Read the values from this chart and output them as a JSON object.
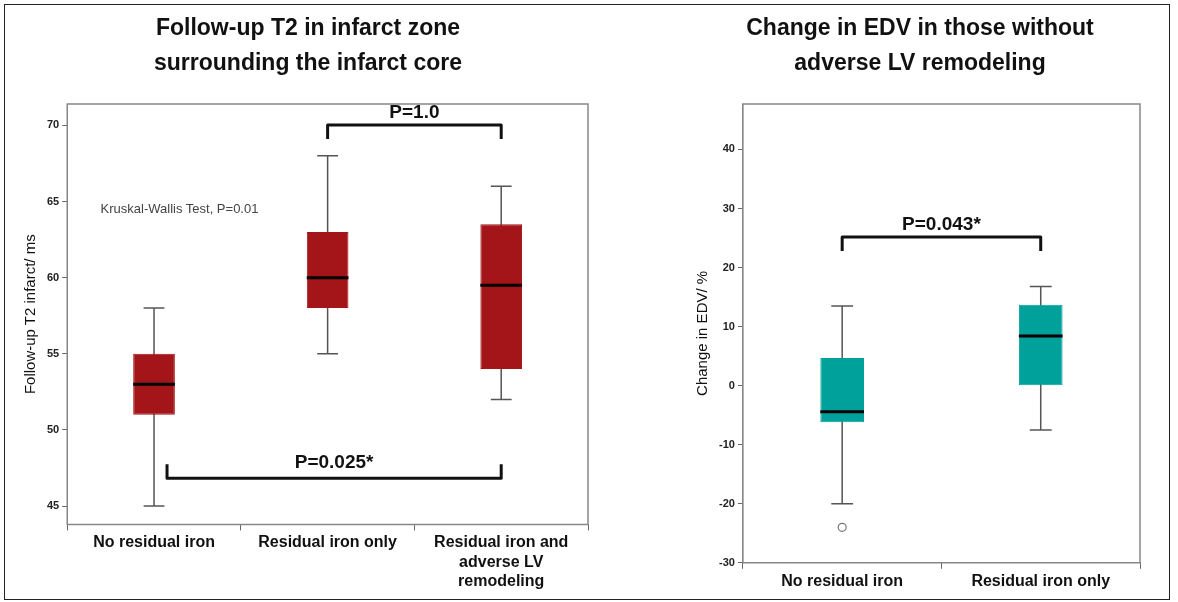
{
  "chart_data": [
    {
      "type": "box",
      "title": "Follow-up T2 in infarct zone surrounding the infarct core",
      "ylabel": "Follow-up T2 infarct/ ms",
      "categories": [
        "No residual iron",
        "Residual iron only",
        "Residual iron and adverse LV remodeling"
      ],
      "color": "#a31518",
      "ylim": [
        43.8,
        71.4
      ],
      "yticks": [
        45,
        50,
        55,
        60,
        65,
        70
      ],
      "grid": false,
      "legend": false,
      "boxes": [
        {
          "low": 45,
          "q1": 51,
          "median": 53,
          "q3": 55,
          "high": 58
        },
        {
          "low": 55,
          "q1": 58,
          "median": 60,
          "q3": 63,
          "high": 68
        },
        {
          "low": 52,
          "q1": 54,
          "median": 59.5,
          "q3": 63.5,
          "high": 66
        }
      ],
      "annotations": [
        "Kruskal-Wallis Test, P=0.01",
        "P=1.0",
        "P=0.025*"
      ]
    },
    {
      "type": "box",
      "title": "Change in EDV in those without adverse LV remodeling",
      "ylabel": "Change in EDV/ %",
      "categories": [
        "No residual iron",
        "Residual iron only"
      ],
      "color": "#00a19b",
      "ylim": [
        -30,
        47.7
      ],
      "yticks": [
        -30,
        -20,
        -10,
        0,
        10,
        20,
        30,
        40
      ],
      "grid": false,
      "legend": false,
      "boxes": [
        {
          "low": -20,
          "q1": -6.2,
          "median": -4.4,
          "q3": 4.7,
          "high": 13.5,
          "outliers": [
            -24
          ]
        },
        {
          "low": -7.5,
          "q1": 0,
          "median": 8.4,
          "q3": 13.7,
          "high": 16.8
        }
      ],
      "annotations": [
        "P=0.043*"
      ]
    }
  ]
}
